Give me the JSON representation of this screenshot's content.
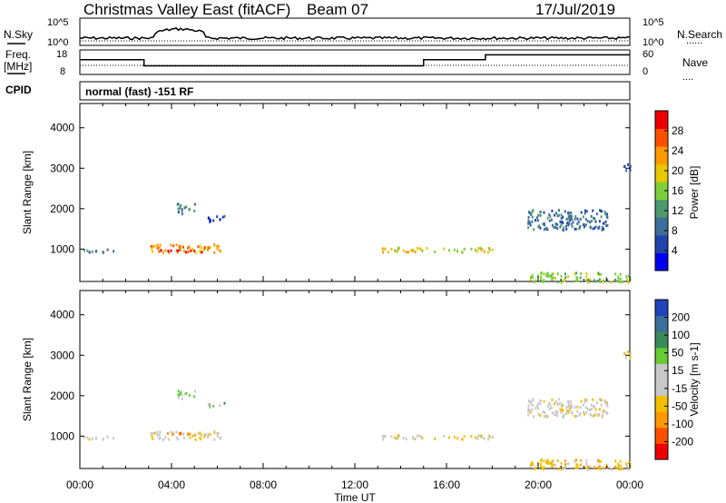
{
  "header": {
    "title": "Christmas Valley East (fitACF)",
    "beam": "Beam 07",
    "date": "17/Jul/2019"
  },
  "strip_labels": {
    "nsky": "N.Sky",
    "nsearch": "N.Search",
    "freq_top": "Freq.",
    "freq_unit": "[MHz]",
    "nave": "Nave",
    "cpid": "CPID",
    "dotted_marker": "......",
    "short_dotted_marker": "...."
  },
  "cpid_text": "normal (fast) -151 RF",
  "colors": {
    "power_scale": [
      "#0000ee",
      "#2244aa",
      "#3c6e9a",
      "#4e9a6e",
      "#7ccf3a",
      "#e8c800",
      "#ff9900",
      "#ff5000",
      "#ee0000"
    ],
    "velocity_scale": [
      "#ee0000",
      "#ff5000",
      "#ff9900",
      "#f0c000",
      "#c8c8c8",
      "#c8c8c8",
      "#66cc33",
      "#3a8a5a",
      "#3c6e9a",
      "#2244bb"
    ],
    "ground_scatter": "#c8c8c8"
  },
  "chart_data": [
    {
      "type": "line",
      "panel": "noise",
      "left_axis": {
        "label": "N.Sky",
        "ticks": [
          "10^5",
          "10^0"
        ]
      },
      "right_axis": {
        "label": "N.Search",
        "ticks": [
          "10^5",
          "10^0"
        ]
      }
    },
    {
      "type": "line",
      "panel": "frequency-nave",
      "left_axis": {
        "label": "Freq. [MHz]",
        "ticks": [
          "18",
          "8"
        ]
      },
      "right_axis": {
        "label": "Nave",
        "ticks": [
          "60",
          "0"
        ]
      },
      "frequency_steps": [
        {
          "start_hour": 0.0,
          "end_hour": 2.8,
          "level": 0.6
        },
        {
          "start_hour": 2.8,
          "end_hour": 15.0,
          "level": 0.35
        },
        {
          "start_hour": 15.0,
          "end_hour": 17.7,
          "level": 0.6
        },
        {
          "start_hour": 17.7,
          "end_hour": 24.0,
          "level": 0.8
        }
      ]
    },
    {
      "type": "heatmap",
      "panel": "power",
      "ylabel": "Slant Range [km]",
      "yticks": [
        "1000",
        "2000",
        "3000",
        "4000"
      ],
      "ylim": [
        200,
        4600
      ],
      "colorbar_label": "Power [dB]",
      "colorbar_ticks": [
        "28",
        "24",
        "20",
        "16",
        "12",
        "8",
        "4"
      ],
      "scatter_patches": [
        {
          "start_hour": 0.0,
          "end_hour": 1.5,
          "range_low": 940,
          "range_high": 1020,
          "level": 2
        },
        {
          "start_hour": 3.0,
          "end_hour": 6.2,
          "range_low": 940,
          "range_high": 1140,
          "level": 6
        },
        {
          "start_hour": 3.5,
          "end_hour": 5.3,
          "range_low": 950,
          "range_high": 1030,
          "level": 8
        },
        {
          "start_hour": 4.2,
          "end_hour": 5.0,
          "range_low": 1900,
          "range_high": 2150,
          "level": 2
        },
        {
          "start_hour": 5.5,
          "end_hour": 6.3,
          "range_low": 1700,
          "range_high": 1850,
          "level": 1
        },
        {
          "start_hour": 13.0,
          "end_hour": 18.0,
          "range_low": 950,
          "range_high": 1060,
          "level": 5
        },
        {
          "start_hour": 19.5,
          "end_hour": 23.0,
          "range_low": 1500,
          "range_high": 2000,
          "level": 2
        },
        {
          "start_hour": 19.5,
          "end_hour": 24.0,
          "range_low": 200,
          "range_high": 450,
          "level": 4
        },
        {
          "start_hour": 23.7,
          "end_hour": 24.0,
          "range_low": 2950,
          "range_high": 3250,
          "level": 2
        }
      ]
    },
    {
      "type": "heatmap",
      "panel": "velocity",
      "ylabel": "Slant Range [km]",
      "yticks": [
        "1000",
        "2000",
        "3000",
        "4000"
      ],
      "ylim": [
        200,
        4600
      ],
      "xlabel": "Time UT",
      "xticks": [
        "00:00",
        "04:00",
        "08:00",
        "12:00",
        "16:00",
        "20:00",
        "00:00"
      ],
      "xlim": [
        0,
        24
      ],
      "colorbar_label": "Velocity [m s-1]",
      "colorbar_ticks": [
        "200",
        "100",
        "50",
        "15",
        "-15",
        "-50",
        "-100",
        "-200"
      ],
      "scatter_patches": [
        {
          "start_hour": 0.0,
          "end_hour": 1.5,
          "range_low": 940,
          "range_high": 1020,
          "level": 4
        },
        {
          "start_hour": 3.0,
          "end_hour": 6.2,
          "range_low": 940,
          "range_high": 1140,
          "level": 4
        },
        {
          "start_hour": 3.8,
          "end_hour": 5.0,
          "range_low": 1050,
          "range_high": 1120,
          "level": 2
        },
        {
          "start_hour": 4.2,
          "end_hour": 5.0,
          "range_low": 1950,
          "range_high": 2150,
          "level": 5
        },
        {
          "start_hour": 5.5,
          "end_hour": 6.3,
          "range_low": 1750,
          "range_high": 1850,
          "level": 6
        },
        {
          "start_hour": 13.0,
          "end_hour": 18.0,
          "range_low": 950,
          "range_high": 1050,
          "level": 4
        },
        {
          "start_hour": 19.5,
          "end_hour": 23.0,
          "range_low": 1500,
          "range_high": 1950,
          "level": 4
        },
        {
          "start_hour": 19.5,
          "end_hour": 24.0,
          "range_low": 200,
          "range_high": 450,
          "level": 3
        },
        {
          "start_hour": 23.7,
          "end_hour": 24.0,
          "range_low": 2950,
          "range_high": 3250,
          "level": 4
        }
      ]
    }
  ]
}
